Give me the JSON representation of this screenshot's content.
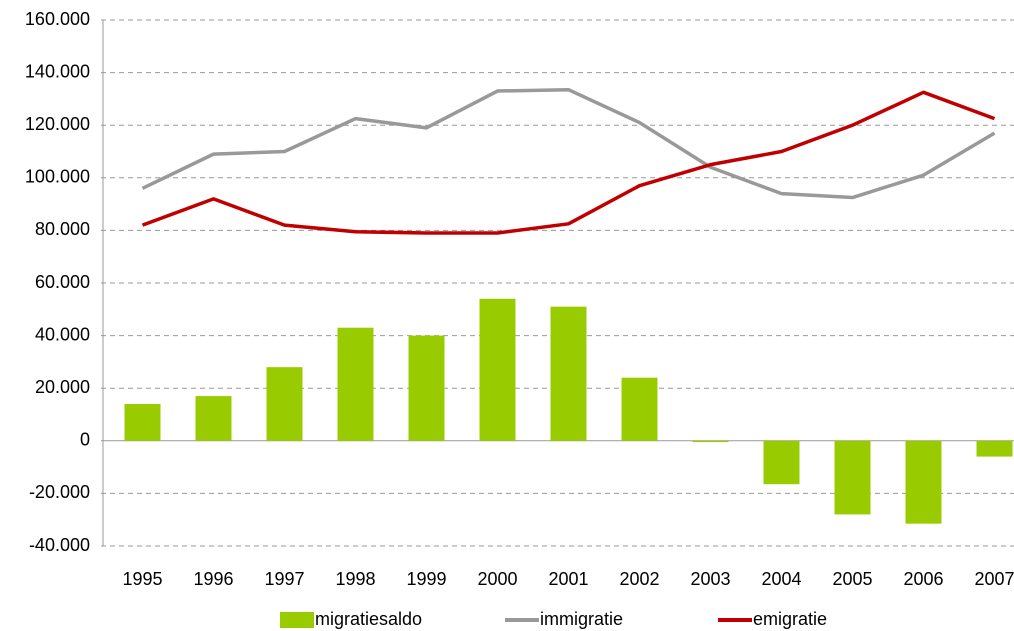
{
  "chart_data": {
    "type": "bar",
    "categories": [
      "1995",
      "1996",
      "1997",
      "1998",
      "1999",
      "2000",
      "2001",
      "2002",
      "2003",
      "2004",
      "2005",
      "2006",
      "2007"
    ],
    "series": [
      {
        "name": "migratiesaldo",
        "type": "bar",
        "color": "#99cc00",
        "values": [
          14000,
          17000,
          28000,
          43000,
          40000,
          54000,
          51000,
          24000,
          -500,
          -16500,
          -28000,
          -31500,
          -6000
        ]
      },
      {
        "name": "immigratie",
        "type": "line",
        "color": "#999999",
        "values": [
          96000,
          109000,
          110000,
          122500,
          119000,
          133000,
          133500,
          121000,
          104000,
          94000,
          92500,
          101000,
          117000
        ]
      },
      {
        "name": "emigratie",
        "type": "line",
        "color": "#c00000",
        "values": [
          82000,
          92000,
          82000,
          79500,
          79000,
          79000,
          82500,
          97000,
          105000,
          110000,
          120000,
          132500,
          122500
        ]
      }
    ],
    "ylim": [
      -40000,
      160000
    ],
    "yticks": [
      {
        "value": -40000,
        "label": "-40.000"
      },
      {
        "value": -20000,
        "label": "-20.000"
      },
      0,
      {
        "value": 20000,
        "label": "20.000"
      },
      {
        "value": 40000,
        "label": "40.000"
      },
      {
        "value": 60000,
        "label": "60.000"
      },
      {
        "value": 80000,
        "label": "80.000"
      },
      {
        "value": 100000,
        "label": "100.000"
      },
      {
        "value": 120000,
        "label": "120.000"
      },
      {
        "value": 140000,
        "label": "140.000"
      },
      {
        "value": 160000,
        "label": "160.000"
      }
    ],
    "grid": true,
    "legend": "bottom"
  }
}
